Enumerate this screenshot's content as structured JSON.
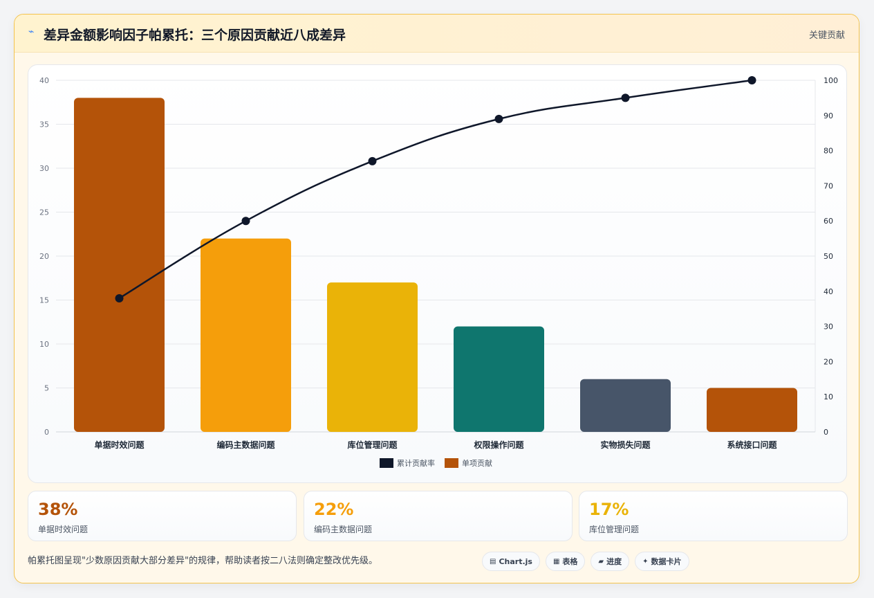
{
  "header": {
    "icon": "⌁",
    "title": "差异金额影响因子帕累托：三个原因贡献近八成差异",
    "tag": "关键贡献"
  },
  "chart_data": {
    "type": "bar",
    "categories": [
      "单据时效问题",
      "编码主数据问题",
      "库位管理问题",
      "权限操作问题",
      "实物损失问题",
      "系统接口问题"
    ],
    "series": [
      {
        "name": "单项贡献",
        "type": "bar",
        "values": [
          38,
          22,
          17,
          12,
          6,
          5
        ],
        "colors": [
          "#b45309",
          "#f59e0b",
          "#eab308",
          "#0f766e",
          "#475569",
          "#b45309"
        ]
      },
      {
        "name": "累计贡献率",
        "type": "line",
        "values": [
          38,
          60,
          77,
          89,
          95,
          100
        ],
        "color": "#0f172a"
      }
    ],
    "y_left": {
      "min": 0,
      "max": 40,
      "ticks": [
        0,
        5,
        10,
        15,
        20,
        25,
        30,
        35,
        40
      ]
    },
    "y_right": {
      "min": 0,
      "max": 100,
      "ticks": [
        0,
        10,
        20,
        30,
        40,
        50,
        60,
        70,
        80,
        90,
        100
      ]
    },
    "legend": [
      {
        "label": "累计贡献率",
        "color": "#0f172a"
      },
      {
        "label": "单项贡献",
        "color": "#b45309"
      }
    ],
    "legend_position": "bottom",
    "grid": true
  },
  "stats": [
    {
      "value": "38%",
      "label": "单据时效问题",
      "color": "#b45309"
    },
    {
      "value": "22%",
      "label": "编码主数据问题",
      "color": "#f59e0b"
    },
    {
      "value": "17%",
      "label": "库位管理问题",
      "color": "#eab308"
    }
  ],
  "footnote": "帕累托图呈现\"少数原因贡献大部分差异\"的规律，帮助读者按二八法则确定整改优先级。",
  "pills": [
    {
      "icon": "▤",
      "label": "Chart.js"
    },
    {
      "icon": "▦",
      "label": "表格"
    },
    {
      "icon": "▰",
      "label": "进度"
    },
    {
      "icon": "✦",
      "label": "数据卡片"
    }
  ]
}
